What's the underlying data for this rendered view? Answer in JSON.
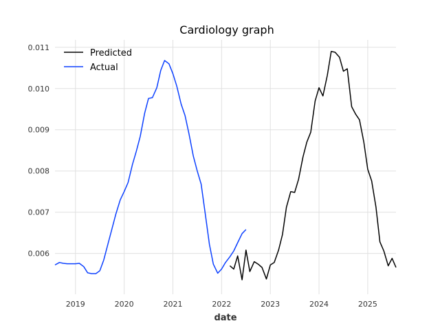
{
  "chart_data": {
    "type": "line",
    "title": "Cardiology graph",
    "xlabel": "date",
    "ylabel": "",
    "xlim": [
      2018.58,
      2025.58
    ],
    "ylim": [
      0.00501,
      0.01118
    ],
    "x_ticks": [
      {
        "value": 2019,
        "label": "2019"
      },
      {
        "value": 2020,
        "label": "2020"
      },
      {
        "value": 2021,
        "label": "2021"
      },
      {
        "value": 2022,
        "label": "2022"
      },
      {
        "value": 2023,
        "label": "2023"
      },
      {
        "value": 2024,
        "label": "2024"
      },
      {
        "value": 2025,
        "label": "2025"
      }
    ],
    "y_ticks": [
      {
        "value": 0.006,
        "label": "0.006"
      },
      {
        "value": 0.007,
        "label": "0.007"
      },
      {
        "value": 0.008,
        "label": "0.008"
      },
      {
        "value": 0.009,
        "label": "0.009"
      },
      {
        "value": 0.01,
        "label": "0.010"
      },
      {
        "value": 0.011,
        "label": "0.011"
      }
    ],
    "legend": {
      "position": "top-left"
    },
    "grid": true,
    "series": [
      {
        "name": "Predicted",
        "color": "#000000",
        "x": [
          2022.17,
          2022.25,
          2022.33,
          2022.42,
          2022.5,
          2022.58,
          2022.67,
          2022.75,
          2022.83,
          2022.92,
          2023.0,
          2023.08,
          2023.17,
          2023.25,
          2023.33,
          2023.42,
          2023.5,
          2023.58,
          2023.67,
          2023.75,
          2023.83,
          2023.92,
          2024.0,
          2024.08,
          2024.17,
          2024.25,
          2024.33,
          2024.42,
          2024.5,
          2024.58,
          2024.67,
          2024.75,
          2024.83,
          2024.92,
          2025.0,
          2025.08,
          2025.17,
          2025.25,
          2025.33,
          2025.42,
          2025.5,
          2025.58
        ],
        "values": [
          0.0057,
          0.00562,
          0.00594,
          0.00536,
          0.00608,
          0.00556,
          0.0058,
          0.00574,
          0.00566,
          0.00538,
          0.00572,
          0.00578,
          0.00608,
          0.00646,
          0.00712,
          0.0075,
          0.00748,
          0.0078,
          0.00834,
          0.0087,
          0.00894,
          0.0097,
          0.01002,
          0.00982,
          0.01032,
          0.0109,
          0.01088,
          0.01076,
          0.01042,
          0.01048,
          0.00956,
          0.00938,
          0.00924,
          0.0087,
          0.00804,
          0.00776,
          0.00712,
          0.00628,
          0.00606,
          0.0057,
          0.00588,
          0.00566
        ]
      },
      {
        "name": "Actual",
        "color": "#0a3fff",
        "x": [
          2018.58,
          2018.67,
          2018.75,
          2018.83,
          2018.92,
          2019.0,
          2019.08,
          2019.17,
          2019.25,
          2019.33,
          2019.42,
          2019.5,
          2019.58,
          2019.67,
          2019.75,
          2019.83,
          2019.92,
          2020.0,
          2020.08,
          2020.17,
          2020.25,
          2020.33,
          2020.42,
          2020.5,
          2020.58,
          2020.67,
          2020.75,
          2020.83,
          2020.92,
          2021.0,
          2021.08,
          2021.17,
          2021.25,
          2021.33,
          2021.42,
          2021.5,
          2021.58,
          2021.67,
          2021.75,
          2021.83,
          2021.92,
          2022.0,
          2022.08,
          2022.17,
          2022.25,
          2022.33,
          2022.42,
          2022.5
        ],
        "values": [
          0.00572,
          0.00578,
          0.00576,
          0.00575,
          0.00575,
          0.00575,
          0.00576,
          0.00568,
          0.00553,
          0.00551,
          0.00551,
          0.00558,
          0.00584,
          0.00624,
          0.0066,
          0.00696,
          0.0073,
          0.0075,
          0.00772,
          0.00816,
          0.00848,
          0.00884,
          0.0094,
          0.00976,
          0.00978,
          0.01002,
          0.01044,
          0.01068,
          0.0106,
          0.01036,
          0.01006,
          0.00962,
          0.00934,
          0.0089,
          0.00836,
          0.008,
          0.00768,
          0.00692,
          0.00622,
          0.00574,
          0.00552,
          0.00562,
          0.00578,
          0.00592,
          0.00606,
          0.00626,
          0.00648,
          0.00658
        ]
      }
    ]
  }
}
